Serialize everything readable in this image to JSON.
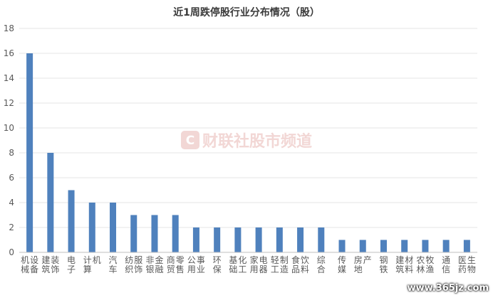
{
  "chart_data": {
    "type": "bar",
    "title": "近1周跌停股行业分布情况（股）",
    "categories": [
      "机械设备",
      "建筑装饰",
      "电子",
      "计算机",
      "汽车",
      "纺织服饰",
      "非银金融",
      "商贸零售",
      "公用事业",
      "环保",
      "基础化工",
      "家用电器",
      "轻工制造",
      "食品饮料",
      "综合",
      "传媒",
      "房地产",
      "钢铁",
      "建筑材料",
      "农林牧渔",
      "通信",
      "医药生物"
    ],
    "series": [
      {
        "values": [
          16,
          8,
          5,
          4,
          4,
          3,
          3,
          3,
          2,
          2,
          2,
          2,
          2,
          2,
          2,
          1,
          1,
          1,
          1,
          1,
          1,
          1
        ]
      }
    ],
    "ylim": [
      0,
      18
    ],
    "yticks": [
      0,
      2,
      4,
      6,
      8,
      10,
      12,
      14,
      16,
      18
    ],
    "grid": true,
    "bar_color": "#4f81bd"
  },
  "watermarks": {
    "center_text": "财联社股市频道",
    "logo_letter": "C",
    "site": "www.365jz.com"
  }
}
